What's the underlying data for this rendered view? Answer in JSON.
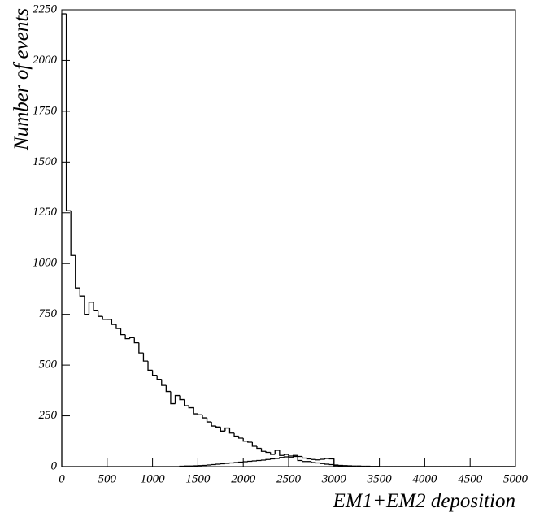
{
  "chart_data": {
    "type": "histogram",
    "xlabel": "EM1+EM2 deposition",
    "ylabel": "Number of events",
    "xlim": [
      0,
      5000
    ],
    "ylim": [
      0,
      2250
    ],
    "xticks": [
      0,
      500,
      1000,
      1500,
      2000,
      2500,
      3000,
      3500,
      4000,
      4500,
      5000
    ],
    "yticks": [
      0,
      250,
      500,
      750,
      1000,
      1250,
      1500,
      1750,
      2000,
      2250
    ],
    "grid": false,
    "bins": [
      0,
      50,
      100,
      150,
      200,
      250,
      300,
      350,
      400,
      450,
      500,
      550,
      600,
      650,
      700,
      750,
      800,
      850,
      900,
      950,
      1000,
      1050,
      1100,
      1150,
      1200,
      1250,
      1300,
      1350,
      1400,
      1450,
      1500,
      1550,
      1600,
      1650,
      1700,
      1750,
      1800,
      1850,
      1900,
      1950,
      2000,
      2050,
      2100,
      2150,
      2200,
      2250,
      2300,
      2350,
      2400,
      2450,
      2500,
      2550,
      2600,
      2650,
      2700,
      2750,
      2800,
      2850,
      2900,
      2950,
      3000,
      3050,
      3100,
      3150,
      3200,
      3250,
      3300,
      3350,
      3400,
      3450,
      3500,
      3550,
      3600,
      3650,
      3700,
      3750,
      3800,
      3850,
      3900,
      3950,
      4000,
      4050,
      4100,
      4150,
      4200,
      4250,
      4300,
      4350,
      4400,
      4450,
      4500,
      4550,
      4600,
      4650,
      4700,
      4750,
      4800,
      4850,
      4900,
      4950,
      5000
    ],
    "series": [
      {
        "color": "#000000",
        "values": [
          2230,
          1260,
          1040,
          880,
          840,
          750,
          810,
          770,
          740,
          725,
          725,
          700,
          680,
          650,
          630,
          635,
          610,
          560,
          520,
          475,
          450,
          430,
          400,
          370,
          310,
          350,
          330,
          300,
          290,
          260,
          255,
          240,
          220,
          200,
          195,
          175,
          190,
          165,
          150,
          140,
          125,
          120,
          100,
          90,
          75,
          70,
          60,
          80,
          55,
          60,
          45,
          50,
          30,
          25,
          25,
          20,
          18,
          15,
          12,
          10,
          8,
          6,
          5,
          4,
          3,
          3,
          2,
          2,
          1,
          1,
          0,
          0,
          0,
          0,
          0,
          0,
          0,
          0,
          0,
          0,
          0,
          0,
          0,
          0,
          0,
          0,
          0,
          0,
          0,
          0,
          0,
          0,
          0,
          0,
          0,
          0,
          0,
          0,
          0,
          0
        ]
      },
      {
        "color": "#000000",
        "values": [
          0,
          0,
          0,
          0,
          0,
          0,
          0,
          0,
          0,
          0,
          0,
          0,
          0,
          0,
          0,
          0,
          0,
          0,
          0,
          0,
          0,
          0,
          0,
          0,
          0,
          0,
          2,
          3,
          3,
          4,
          5,
          6,
          8,
          10,
          12,
          14,
          16,
          18,
          20,
          22,
          24,
          26,
          28,
          30,
          32,
          35,
          38,
          40,
          45,
          48,
          52,
          55,
          50,
          42,
          38,
          35,
          33,
          36,
          40,
          38,
          5,
          2,
          1,
          0,
          0,
          0,
          0,
          0,
          0,
          0,
          0,
          0,
          0,
          0,
          0,
          0,
          0,
          0,
          0,
          0,
          0,
          0,
          0,
          0,
          0,
          0,
          0,
          0,
          0,
          0,
          0,
          0,
          0,
          0,
          0,
          0,
          0,
          0,
          0,
          0
        ]
      }
    ]
  }
}
